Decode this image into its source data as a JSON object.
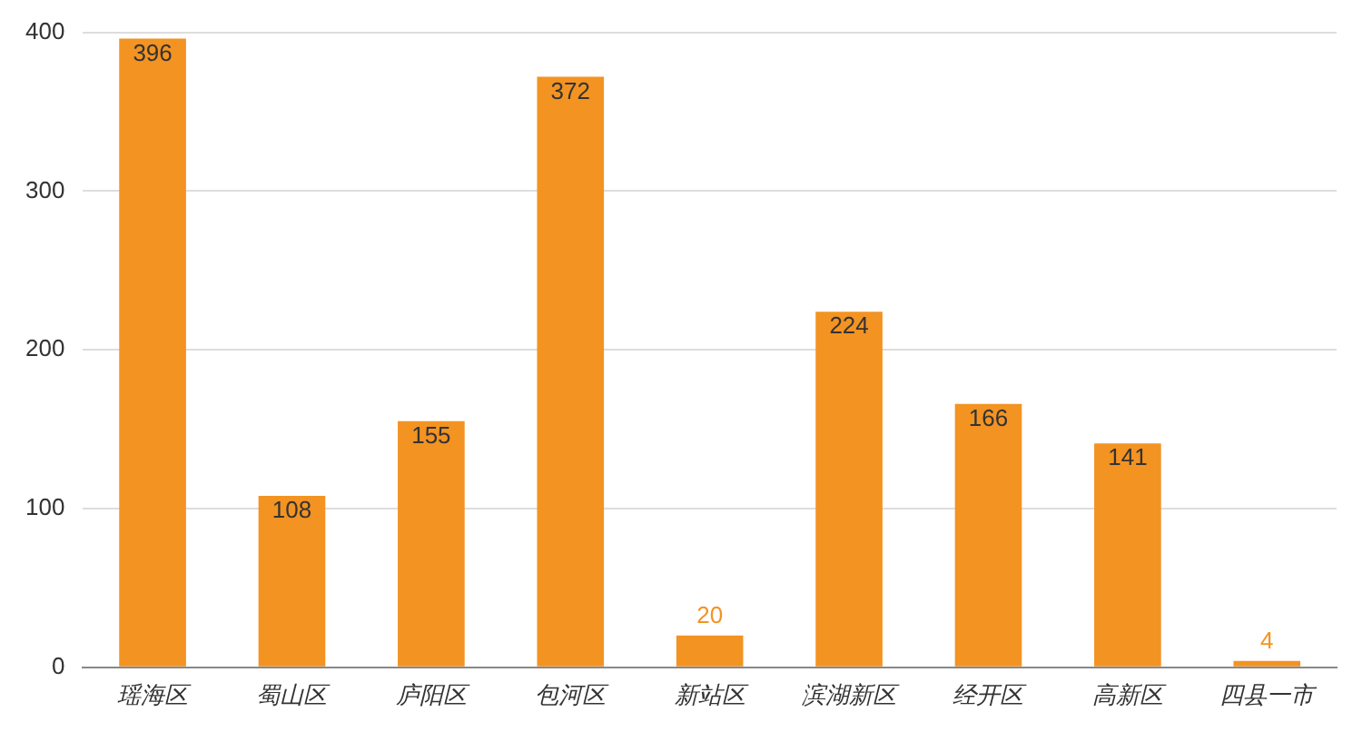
{
  "chart_data": {
    "type": "bar",
    "categories": [
      "瑶海区",
      "蜀山区",
      "庐阳区",
      "包河区",
      "新站区",
      "滨湖新区",
      "经开区",
      "高新区",
      "四县一市"
    ],
    "values": [
      396,
      108,
      155,
      372,
      20,
      224,
      166,
      141,
      4
    ],
    "color": "#f39322",
    "ylim": [
      0,
      400
    ],
    "yticks": [
      0,
      100,
      200,
      300,
      400
    ],
    "grid": "y",
    "data_labels": true,
    "legend": false
  }
}
